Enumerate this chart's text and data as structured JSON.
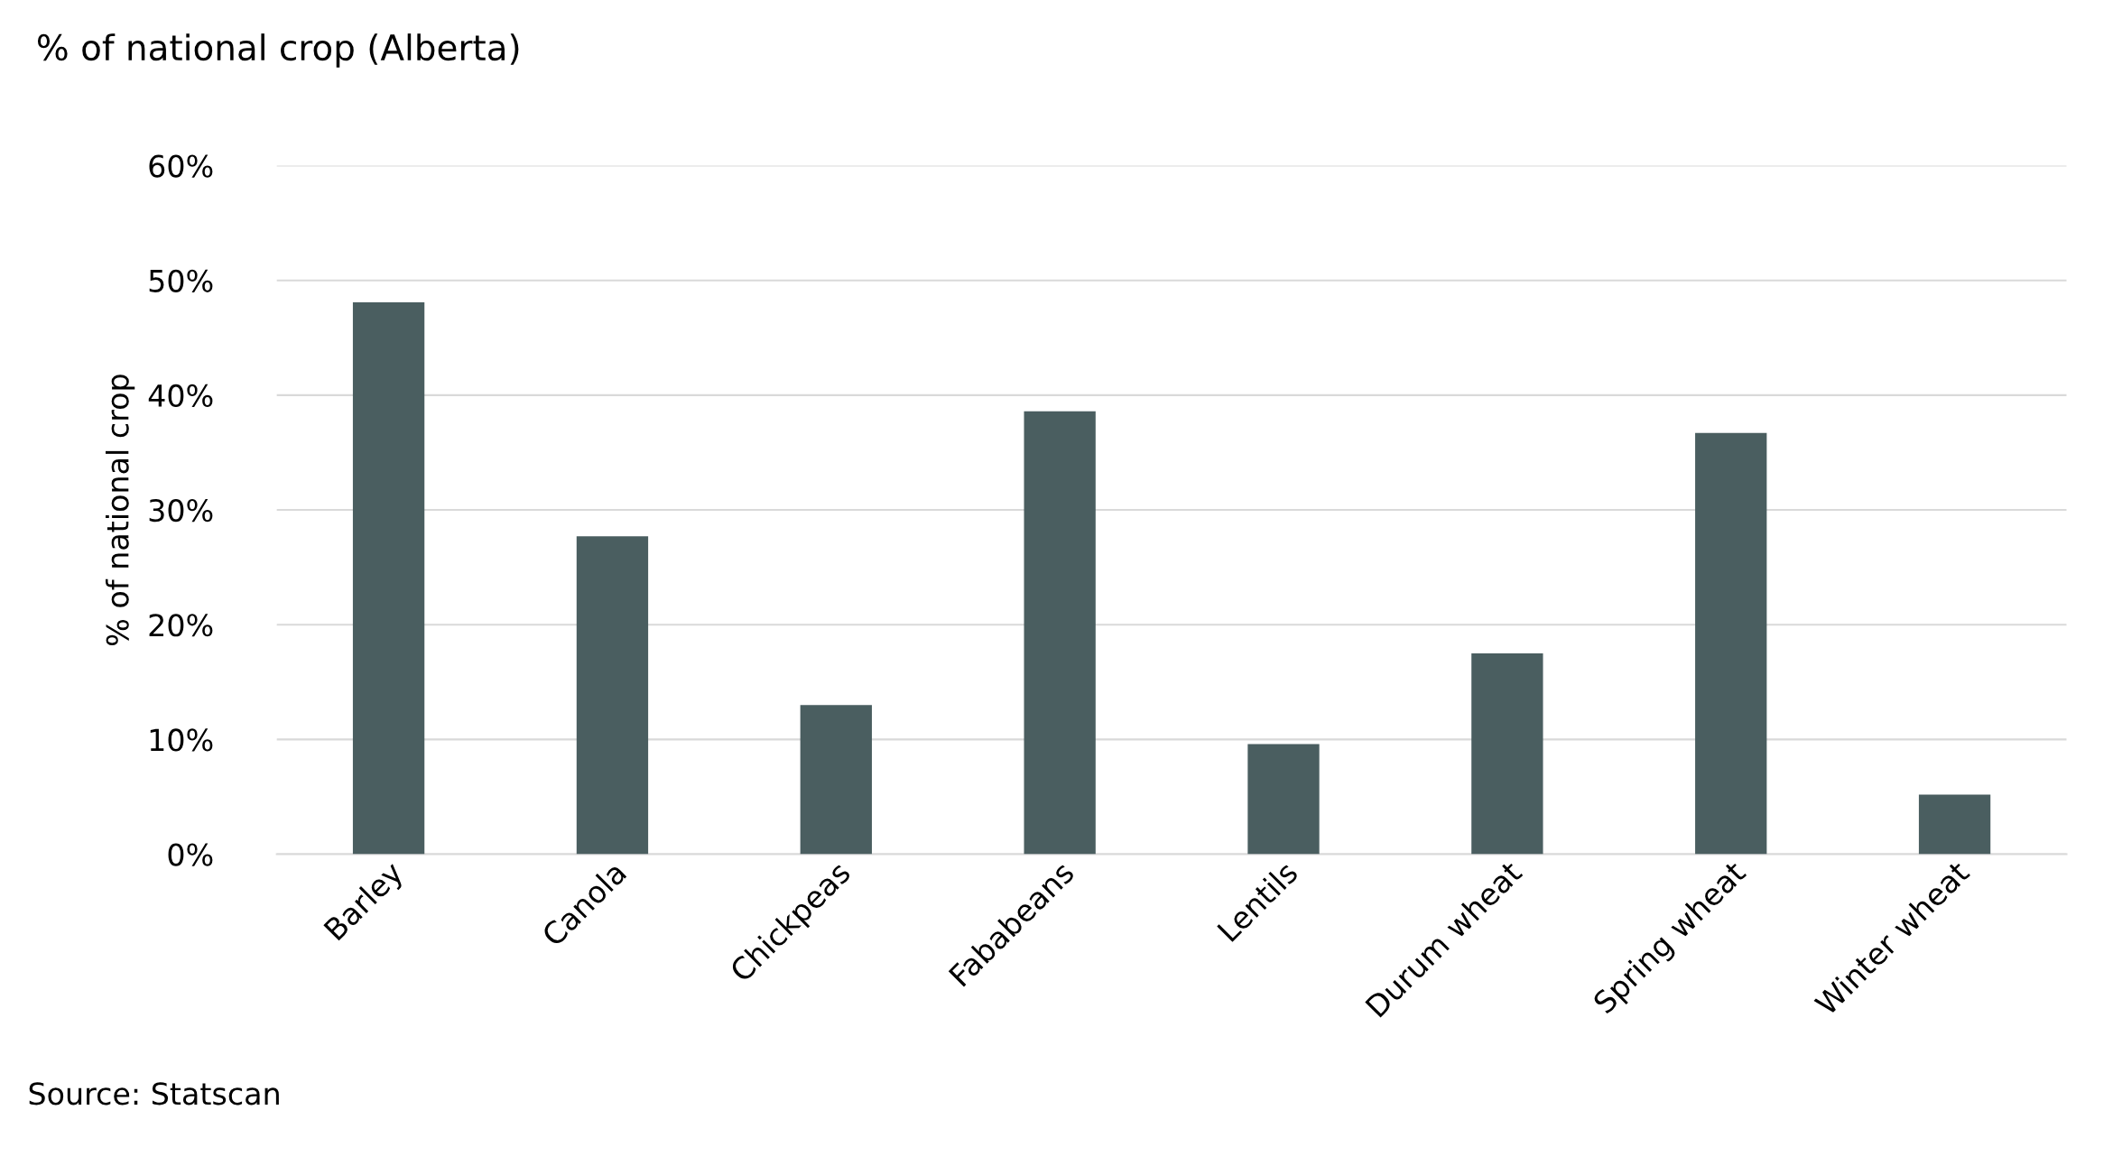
{
  "chart_data": {
    "type": "bar",
    "title": "% of national crop (Alberta)",
    "ylabel": "% of national crop",
    "categories": [
      "Barley",
      "Canola",
      "Chickpeas",
      "Fababeans",
      "Lentils",
      "Durum wheat",
      "Spring wheat",
      "Winter wheat"
    ],
    "values": [
      48.1,
      27.7,
      13.0,
      38.6,
      9.6,
      17.5,
      36.7,
      5.2
    ],
    "color": "#4a5e60",
    "ylim": [
      0,
      60
    ],
    "yticks": [
      {
        "value": 0,
        "label": "0%"
      },
      {
        "value": 10,
        "label": "10%"
      },
      {
        "value": 20,
        "label": "20%"
      },
      {
        "value": 30,
        "label": "30%"
      },
      {
        "value": 40,
        "label": "40%"
      },
      {
        "value": 50,
        "label": "50%"
      },
      {
        "value": 60,
        "label": "60%"
      }
    ],
    "grid": "y",
    "annotations": [
      "Source: Statscan"
    ]
  }
}
